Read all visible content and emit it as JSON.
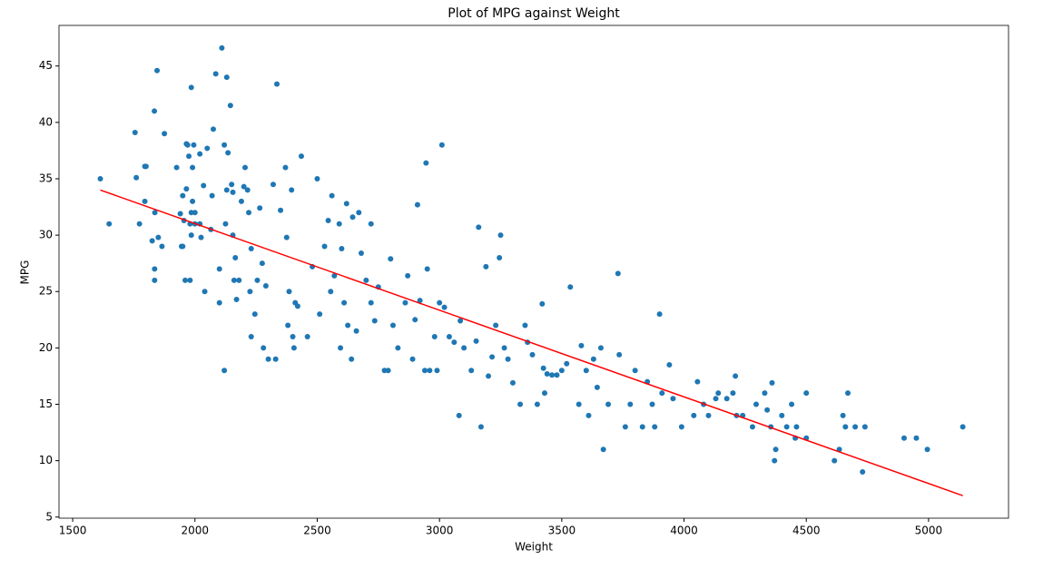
{
  "chart_data": {
    "type": "scatter",
    "title": "Plot of MPG against Weight",
    "x_label": "Weight",
    "y_label": "MPG",
    "xlim": [
      1444,
      5327
    ],
    "ylim": [
      4.9,
      48.6
    ],
    "xticks": [
      1500,
      2000,
      2500,
      3000,
      3500,
      4000,
      4500,
      5000
    ],
    "yticks": [
      5,
      10,
      15,
      20,
      25,
      30,
      35,
      40,
      45
    ],
    "grid": false,
    "series": [
      {
        "type": "scatter",
        "color": "#1f77b4",
        "x": [
          1613,
          1649,
          1755,
          1760,
          1773,
          1795,
          1795,
          1800,
          1825,
          1834,
          1835,
          1835,
          1836,
          1845,
          1850,
          1865,
          1875,
          1925,
          1940,
          1945,
          1950,
          1950,
          1955,
          1960,
          1965,
          1965,
          1970,
          1975,
          1980,
          1980,
          1985,
          1985,
          1985,
          1990,
          1990,
          1995,
          2000,
          2000,
          2020,
          2020,
          2025,
          2035,
          2040,
          2050,
          2065,
          2070,
          2075,
          2085,
          2100,
          2100,
          2110,
          2120,
          2120,
          2125,
          2130,
          2130,
          2135,
          2145,
          2150,
          2155,
          2155,
          2160,
          2165,
          2170,
          2180,
          2190,
          2200,
          2205,
          2215,
          2220,
          2225,
          2230,
          2230,
          2245,
          2255,
          2265,
          2275,
          2280,
          2290,
          2300,
          2320,
          2335,
          2330,
          2350,
          2370,
          2375,
          2380,
          2385,
          2395,
          2400,
          2405,
          2410,
          2420,
          2435,
          2460,
          2480,
          2500,
          2510,
          2530,
          2545,
          2555,
          2560,
          2570,
          2590,
          2595,
          2600,
          2610,
          2620,
          2625,
          2640,
          2645,
          2660,
          2670,
          2680,
          2700,
          2720,
          2720,
          2735,
          2750,
          2775,
          2790,
          2800,
          2810,
          2830,
          2860,
          2870,
          2890,
          2900,
          2910,
          2920,
          2940,
          2945,
          2950,
          2960,
          2980,
          2990,
          3000,
          3010,
          3020,
          3040,
          3060,
          3085,
          3080,
          3100,
          3130,
          3150,
          3160,
          3170,
          3190,
          3200,
          3215,
          3230,
          3245,
          3250,
          3265,
          3280,
          3300,
          3330,
          3350,
          3360,
          3380,
          3400,
          3420,
          3425,
          3430,
          3440,
          3460,
          3480,
          3500,
          3520,
          3535,
          3570,
          3580,
          3600,
          3610,
          3630,
          3645,
          3660,
          3670,
          3690,
          3730,
          3735,
          3760,
          3780,
          3800,
          3830,
          3850,
          3870,
          3880,
          3900,
          3910,
          3940,
          3955,
          3990,
          4040,
          4055,
          4080,
          4100,
          4130,
          4140,
          4175,
          4200,
          4210,
          4215,
          4240,
          4280,
          4295,
          4330,
          4340,
          4355,
          4360,
          4370,
          4375,
          4400,
          4420,
          4440,
          4455,
          4460,
          4500,
          4500,
          4615,
          4635,
          4650,
          4660,
          4670,
          4700,
          4730,
          4740,
          4900,
          4950,
          4995,
          5140
        ],
        "values": [
          35,
          31,
          39.1,
          35.1,
          31,
          33,
          36.1,
          36.1,
          29.5,
          41,
          27,
          26,
          32,
          44.6,
          29.8,
          29,
          39,
          36,
          31.9,
          29,
          33.5,
          29,
          31.3,
          26,
          38.1,
          34.1,
          38,
          37,
          26,
          31,
          43.1,
          32,
          30,
          33,
          36,
          38,
          31,
          32,
          37.2,
          31,
          29.8,
          34.4,
          25,
          37.7,
          30.5,
          33.5,
          39.4,
          44.3,
          27,
          24,
          46.6,
          38,
          18,
          31,
          34,
          44,
          37.3,
          41.5,
          34.5,
          33.8,
          30,
          26,
          28,
          24.3,
          26,
          33,
          34.3,
          36,
          34,
          32,
          25,
          21,
          28.8,
          23,
          26,
          32.4,
          27.5,
          20,
          25.5,
          19,
          34.5,
          43.4,
          19,
          32.2,
          36,
          29.8,
          22,
          25,
          34,
          21,
          20,
          24,
          23.7,
          37,
          21,
          27.2,
          35,
          23,
          29,
          31.3,
          25,
          33.5,
          26.4,
          31,
          20,
          28.8,
          24,
          32.8,
          22,
          19,
          31.6,
          21.5,
          32,
          28.4,
          26,
          31,
          24,
          22.4,
          25.4,
          18,
          18,
          27.9,
          22,
          20,
          24,
          26.4,
          19,
          22.5,
          32.7,
          24.2,
          18,
          36.4,
          27,
          18,
          21,
          18,
          24,
          38,
          23.6,
          21,
          20.5,
          22.4,
          14,
          20,
          18,
          20.6,
          30.7,
          13,
          27.2,
          17.5,
          19.2,
          22,
          28,
          30,
          20,
          19,
          16.9,
          15,
          22,
          20.5,
          19.4,
          15,
          23.9,
          18.2,
          16,
          17.7,
          17.6,
          17.6,
          18,
          18.6,
          25.4,
          15,
          20.2,
          18,
          14,
          19,
          16.5,
          20,
          11,
          15,
          26.6,
          19.4,
          13,
          15,
          18,
          13,
          17,
          15,
          13,
          23,
          16,
          18.5,
          15.5,
          13,
          14,
          17,
          15,
          14,
          15.5,
          16,
          15.5,
          16,
          17.5,
          14,
          14,
          13,
          15,
          16,
          14.5,
          13,
          16.9,
          10,
          11,
          14,
          13,
          15,
          12,
          13,
          16,
          12,
          10,
          11,
          14,
          13,
          16,
          13,
          9,
          13,
          12,
          12,
          11,
          13
        ]
      },
      {
        "type": "line",
        "color": "#ff0000",
        "x": [
          1613,
          5140
        ],
        "values": [
          34.0,
          6.9
        ]
      }
    ]
  }
}
